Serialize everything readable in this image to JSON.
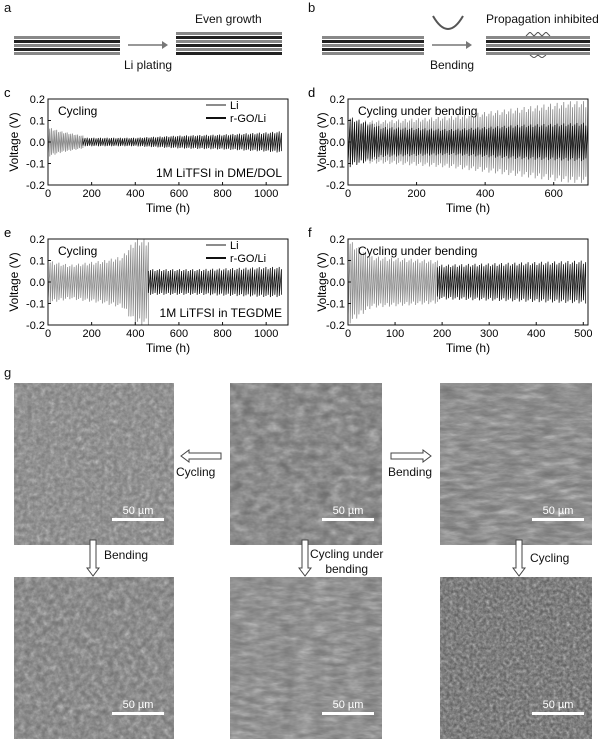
{
  "panels": {
    "a": {
      "letter": "a",
      "label_bottom": "Li plating",
      "label_top": "Even growth"
    },
    "b": {
      "letter": "b",
      "label_bottom": "Bending",
      "label_top": "Propagation inhibited"
    },
    "g": {
      "letter": "g"
    }
  },
  "sem": {
    "scale_bar": "50 µm",
    "arrows": {
      "cycling_left": "Cycling",
      "bending_right": "Bending",
      "bending_down": "Bending",
      "cycling_under_bending_line1": "Cycling under",
      "cycling_under_bending_line2": "bending",
      "cycling_down": "Cycling"
    }
  },
  "colors": {
    "li": "#8c8c8c",
    "rgo": "#111111"
  },
  "chart_data": [
    {
      "id": "c",
      "letter": "c",
      "type": "line",
      "title": "Cycling",
      "annotation": "1M LiTFSI in DME/DOL",
      "xlabel": "Time (h)",
      "ylabel": "Voltage (V)",
      "xlim": [
        0,
        1100
      ],
      "xticks": [
        0,
        200,
        400,
        600,
        800,
        1000
      ],
      "ylim": [
        -0.2,
        0.2
      ],
      "yticks": [
        -0.2,
        -0.1,
        0.0,
        0.1,
        0.2
      ],
      "ytick_labels": [
        "-0.2",
        "-0.1",
        "0.0",
        "0.1",
        "0.2"
      ],
      "legend": [
        "Li",
        "r-GO/Li"
      ],
      "series": [
        {
          "name": "Li",
          "color": "#8c8c8c",
          "x_end": 160,
          "env": [
            [
              0,
              0.07
            ],
            [
              60,
              0.05
            ],
            [
              160,
              0.03
            ]
          ]
        },
        {
          "name": "r-GO/Li",
          "color": "#111111",
          "x_start": 160,
          "x_end": 1070,
          "env": [
            [
              160,
              0.02
            ],
            [
              400,
              0.02
            ],
            [
              600,
              0.03
            ],
            [
              800,
              0.035
            ],
            [
              1000,
              0.045
            ],
            [
              1070,
              0.05
            ]
          ]
        }
      ]
    },
    {
      "id": "d",
      "letter": "d",
      "type": "line",
      "title": "Cycling under bending",
      "xlabel": "Time (h)",
      "ylabel": "Voltage (V)",
      "xlim": [
        0,
        700
      ],
      "xticks": [
        0,
        200,
        400,
        600
      ],
      "ylim": [
        -0.2,
        0.2
      ],
      "yticks": [
        -0.2,
        -0.1,
        0.0,
        0.1,
        0.2
      ],
      "ytick_labels": [
        "-0.2",
        "-0.1",
        "0.0",
        "0.1",
        "0.2"
      ],
      "series": [
        {
          "name": "Li",
          "color": "#8c8c8c",
          "x_end": 700,
          "env": [
            [
              0,
              0.1
            ],
            [
              100,
              0.1
            ],
            [
              300,
              0.12
            ],
            [
              500,
              0.16
            ],
            [
              650,
              0.19
            ],
            [
              700,
              0.19
            ]
          ]
        },
        {
          "name": "r-GO/Li",
          "color": "#111111",
          "x_start": 0,
          "x_end": 700,
          "env": [
            [
              0,
              0.12
            ],
            [
              100,
              0.07
            ],
            [
              300,
              0.06
            ],
            [
              500,
              0.08
            ],
            [
              700,
              0.09
            ]
          ]
        }
      ]
    },
    {
      "id": "e",
      "letter": "e",
      "type": "line",
      "title": "Cycling",
      "annotation": "1M LiTFSI in TEGDME",
      "xlabel": "Time (h)",
      "ylabel": "Voltage (V)",
      "xlim": [
        0,
        1100
      ],
      "xticks": [
        0,
        200,
        400,
        600,
        800,
        1000
      ],
      "ylim": [
        -0.2,
        0.2
      ],
      "yticks": [
        -0.2,
        -0.1,
        0.0,
        0.1,
        0.2
      ],
      "ytick_labels": [
        "-0.2",
        "-0.1",
        "0.0",
        "0.1",
        "0.2"
      ],
      "legend": [
        "Li",
        "r-GO/Li"
      ],
      "series": [
        {
          "name": "Li",
          "color": "#8c8c8c",
          "x_end": 460,
          "env": [
            [
              0,
              0.1
            ],
            [
              100,
              0.08
            ],
            [
              250,
              0.1
            ],
            [
              340,
              0.12
            ],
            [
              400,
              0.2
            ],
            [
              460,
              0.2
            ]
          ]
        },
        {
          "name": "r-GO/Li",
          "color": "#111111",
          "x_start": 460,
          "x_end": 1070,
          "env": [
            [
              460,
              0.06
            ],
            [
              700,
              0.06
            ],
            [
              1000,
              0.07
            ],
            [
              1070,
              0.07
            ]
          ]
        }
      ]
    },
    {
      "id": "f",
      "letter": "f",
      "type": "line",
      "title": "Cycling under bending",
      "xlabel": "Time (h)",
      "ylabel": "Voltage (V)",
      "xlim": [
        0,
        510
      ],
      "xticks": [
        0,
        100,
        200,
        300,
        400,
        500
      ],
      "ylim": [
        -0.2,
        0.2
      ],
      "yticks": [
        -0.2,
        -0.1,
        0.0,
        0.1,
        0.2
      ],
      "ytick_labels": [
        "-0.2",
        "-0.1",
        "0.0",
        "0.1",
        "0.2"
      ],
      "series": [
        {
          "name": "Li",
          "color": "#8c8c8c",
          "x_end": 190,
          "env": [
            [
              0,
              0.2
            ],
            [
              50,
              0.12
            ],
            [
              190,
              0.1
            ]
          ]
        },
        {
          "name": "r-GO/Li",
          "color": "#111111",
          "x_start": 190,
          "x_end": 505,
          "env": [
            [
              190,
              0.08
            ],
            [
              350,
              0.09
            ],
            [
              505,
              0.1
            ]
          ]
        }
      ]
    }
  ]
}
